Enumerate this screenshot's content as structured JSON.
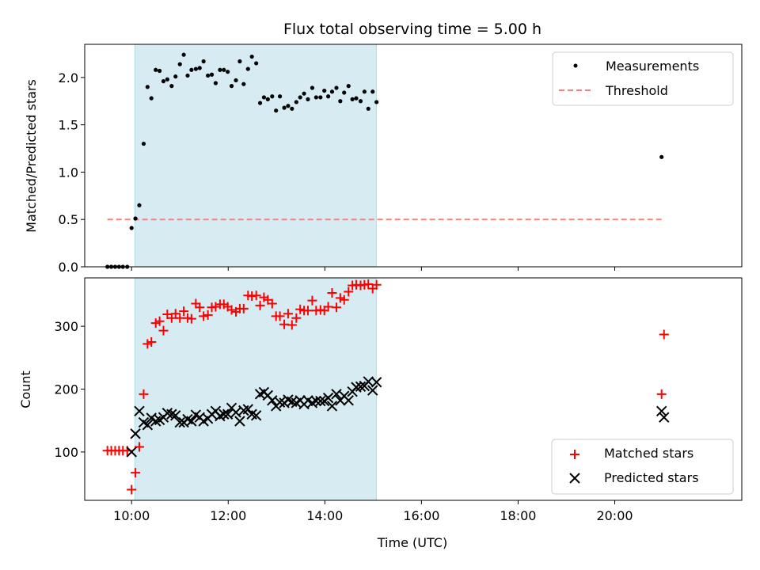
{
  "chart_data": [
    {
      "type": "scatter",
      "title": "Flux total observing time = 5.00 h",
      "xlabel": "",
      "ylabel": "Matched/Predicted stars",
      "xlim": [
        8.98,
        22.58
      ],
      "ylim": [
        0.0,
        2.35
      ],
      "x_ticks": [
        9.95,
        11.95,
        13.95,
        15.95,
        17.95,
        19.95
      ],
      "x_tick_labels": [
        "",
        "",
        "",
        "",
        "",
        ""
      ],
      "y_ticks": [
        0.0,
        0.5,
        1.0,
        1.5,
        2.0
      ],
      "y_tick_labels": [
        "0.0",
        "0.5",
        "1.0",
        "1.5",
        "2.0"
      ],
      "observing_window": {
        "start": 10.02,
        "end": 15.02,
        "color": "#add8e6"
      },
      "threshold": {
        "value": 0.5,
        "x_start": 9.45,
        "x_end": 20.95,
        "color": "#ff7f7f"
      },
      "legend_position": "top-right",
      "legend": [
        {
          "label": "Measurements",
          "marker": "dot",
          "color": "#000000"
        },
        {
          "label": "Threshold",
          "marker": "dashed-line",
          "color": "#ff7f7f"
        }
      ],
      "series": [
        {
          "name": "Measurements",
          "color": "#000000",
          "x": [
            9.45,
            9.53,
            9.61,
            9.69,
            9.77,
            9.86,
            9.95,
            10.03,
            10.11,
            10.2,
            10.28,
            10.36,
            10.45,
            10.53,
            10.61,
            10.69,
            10.78,
            10.86,
            10.95,
            11.03,
            11.11,
            11.19,
            11.28,
            11.36,
            11.44,
            11.53,
            11.61,
            11.69,
            11.78,
            11.86,
            11.94,
            12.02,
            12.11,
            12.19,
            12.27,
            12.36,
            12.44,
            12.53,
            12.61,
            12.69,
            12.77,
            12.86,
            12.94,
            13.02,
            13.11,
            13.19,
            13.27,
            13.36,
            13.44,
            13.52,
            13.6,
            13.69,
            13.77,
            13.86,
            13.94,
            14.02,
            14.1,
            14.19,
            14.27,
            14.35,
            14.44,
            14.52,
            14.6,
            14.69,
            14.77,
            14.85,
            14.94,
            15.02,
            20.92
          ],
          "y": [
            0.0,
            0.0,
            0.0,
            0.0,
            0.0,
            0.0,
            0.41,
            0.51,
            0.65,
            1.3,
            1.9,
            1.78,
            2.08,
            2.07,
            1.96,
            1.98,
            1.91,
            2.01,
            2.14,
            2.24,
            2.02,
            2.08,
            2.09,
            2.1,
            2.17,
            2.02,
            2.03,
            1.94,
            2.08,
            2.08,
            2.06,
            1.91,
            1.97,
            2.17,
            1.93,
            2.09,
            2.22,
            2.15,
            1.73,
            1.79,
            1.77,
            1.8,
            1.65,
            1.8,
            1.68,
            1.7,
            1.67,
            1.74,
            1.79,
            1.83,
            1.77,
            1.89,
            1.79,
            1.79,
            1.86,
            1.8,
            1.85,
            1.89,
            1.75,
            1.84,
            1.91,
            1.77,
            1.78,
            1.75,
            1.85,
            1.67,
            1.85,
            1.74,
            1.16
          ]
        }
      ]
    },
    {
      "type": "scatter",
      "title": "",
      "xlabel": "Time (UTC)",
      "ylabel": "Count",
      "xlim": [
        8.98,
        22.58
      ],
      "ylim": [
        23,
        377
      ],
      "x_ticks": [
        9.95,
        11.95,
        13.95,
        15.95,
        17.95,
        19.95
      ],
      "x_tick_labels": [
        "10:00",
        "12:00",
        "14:00",
        "16:00",
        "18:00",
        "20:00"
      ],
      "y_ticks": [
        100,
        200,
        300
      ],
      "y_tick_labels": [
        "100",
        "200",
        "300"
      ],
      "observing_window": {
        "start": 10.02,
        "end": 15.02,
        "color": "#add8e6"
      },
      "legend_position": "bottom-right",
      "legend": [
        {
          "label": "Matched stars",
          "marker": "plus",
          "color": "#ff0000"
        },
        {
          "label": "Predicted stars",
          "marker": "x",
          "color": "#000000"
        }
      ],
      "series": [
        {
          "name": "Matched stars",
          "color": "#ff0000",
          "marker": "plus",
          "x": [
            9.45,
            9.53,
            9.61,
            9.69,
            9.77,
            9.86,
            9.95,
            10.03,
            10.11,
            10.2,
            10.28,
            10.36,
            10.45,
            10.53,
            10.61,
            10.69,
            10.78,
            10.86,
            10.95,
            11.03,
            11.11,
            11.19,
            11.28,
            11.36,
            11.44,
            11.53,
            11.61,
            11.69,
            11.78,
            11.86,
            11.94,
            12.02,
            12.11,
            12.19,
            12.27,
            12.36,
            12.44,
            12.53,
            12.61,
            12.69,
            12.77,
            12.86,
            12.94,
            13.02,
            13.11,
            13.19,
            13.27,
            13.36,
            13.44,
            13.52,
            13.6,
            13.69,
            13.77,
            13.86,
            13.94,
            14.02,
            14.1,
            14.19,
            14.27,
            14.35,
            14.44,
            14.52,
            14.6,
            14.69,
            14.77,
            14.85,
            14.94,
            15.02,
            20.92,
            20.97
          ],
          "y": [
            102,
            102,
            102,
            102,
            102,
            102,
            40,
            67,
            108,
            192,
            272,
            275,
            305,
            308,
            293,
            319,
            313,
            320,
            313,
            324,
            313,
            312,
            336,
            330,
            316,
            318,
            330,
            331,
            335,
            335,
            331,
            326,
            323,
            328,
            328,
            349,
            348,
            349,
            333,
            346,
            342,
            336,
            316,
            316,
            303,
            320,
            302,
            313,
            327,
            325,
            325,
            341,
            325,
            326,
            325,
            331,
            353,
            330,
            345,
            342,
            355,
            365,
            366,
            365,
            366,
            367,
            360,
            366,
            192,
            287
          ]
        },
        {
          "name": "Predicted stars",
          "color": "#000000",
          "marker": "x",
          "x": [
            9.95,
            10.03,
            10.11,
            10.2,
            10.28,
            10.36,
            10.45,
            10.53,
            10.61,
            10.69,
            10.78,
            10.86,
            10.95,
            11.03,
            11.11,
            11.19,
            11.28,
            11.36,
            11.44,
            11.53,
            11.61,
            11.69,
            11.78,
            11.86,
            11.94,
            12.02,
            12.11,
            12.19,
            12.27,
            12.36,
            12.44,
            12.53,
            12.61,
            12.69,
            12.77,
            12.86,
            12.94,
            13.02,
            13.11,
            13.19,
            13.27,
            13.36,
            13.44,
            13.52,
            13.6,
            13.69,
            13.77,
            13.86,
            13.94,
            14.02,
            14.1,
            14.19,
            14.27,
            14.35,
            14.44,
            14.52,
            14.6,
            14.69,
            14.77,
            14.85,
            14.94,
            15.02,
            20.92,
            20.97
          ],
          "y": [
            100,
            129,
            165,
            147,
            143,
            154,
            149,
            151,
            155,
            162,
            160,
            158,
            147,
            147,
            152,
            149,
            159,
            155,
            149,
            153,
            160,
            165,
            157,
            160,
            160,
            170,
            163,
            149,
            166,
            168,
            160,
            158,
            192,
            195,
            190,
            182,
            173,
            179,
            178,
            183,
            180,
            178,
            182,
            176,
            182,
            178,
            181,
            181,
            181,
            186,
            173,
            192,
            182,
            189,
            182,
            196,
            203,
            204,
            205,
            212,
            198,
            211,
            165,
            155
          ]
        }
      ]
    }
  ]
}
